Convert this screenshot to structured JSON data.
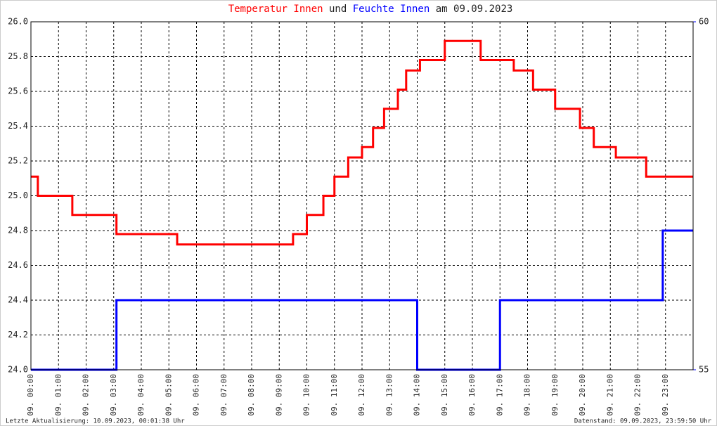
{
  "chart_data": {
    "type": "line",
    "title_connector": "und",
    "title_suffix": "am 09.09.2023",
    "footer_left": "Letzte Aktualisierung: 10.09.2023, 00:01:38 Uhr",
    "footer_right": "Datenstand: 09.09.2023, 23:59:50 Uhr",
    "xlim": [
      0,
      24
    ],
    "xticks": [
      {
        "value": 0,
        "label": "09. 00:00"
      },
      {
        "value": 1,
        "label": "09. 01:00"
      },
      {
        "value": 2,
        "label": "09. 02:00"
      },
      {
        "value": 3,
        "label": "09. 03:00"
      },
      {
        "value": 4,
        "label": "09. 04:00"
      },
      {
        "value": 5,
        "label": "09. 05:00"
      },
      {
        "value": 6,
        "label": "09. 06:00"
      },
      {
        "value": 7,
        "label": "09. 07:00"
      },
      {
        "value": 8,
        "label": "09. 08:00"
      },
      {
        "value": 9,
        "label": "09. 09:00"
      },
      {
        "value": 10,
        "label": "09. 10:00"
      },
      {
        "value": 11,
        "label": "09. 11:00"
      },
      {
        "value": 12,
        "label": "09. 12:00"
      },
      {
        "value": 13,
        "label": "09. 13:00"
      },
      {
        "value": 14,
        "label": "09. 14:00"
      },
      {
        "value": 15,
        "label": "09. 15:00"
      },
      {
        "value": 16,
        "label": "09. 16:00"
      },
      {
        "value": 17,
        "label": "09. 17:00"
      },
      {
        "value": 18,
        "label": "09. 18:00"
      },
      {
        "value": 19,
        "label": "09. 19:00"
      },
      {
        "value": 20,
        "label": "09. 20:00"
      },
      {
        "value": 21,
        "label": "09. 21:00"
      },
      {
        "value": 22,
        "label": "09. 22:00"
      },
      {
        "value": 23,
        "label": "09. 23:00"
      }
    ],
    "ylim": [
      24,
      26
    ],
    "yticks": [
      {
        "value": 24,
        "label": "24.0"
      },
      24.2,
      24.4,
      24.6,
      24.8,
      {
        "value": 25,
        "label": "25.0"
      },
      25.2,
      25.4,
      25.6,
      25.8,
      {
        "value": 26,
        "label": "26.0"
      }
    ],
    "y2lim": [
      55,
      60
    ],
    "y2ticks": [
      55,
      60
    ],
    "grid": true,
    "series": [
      {
        "name": "Temperatur Innen",
        "color": "#ff0000",
        "x": [
          0,
          0.25,
          0.25,
          1.5,
          1.5,
          3.1,
          3.1,
          5.3,
          5.3,
          9.5,
          9.5,
          10.0,
          10.0,
          10.6,
          10.6,
          11.0,
          11.0,
          11.5,
          11.5,
          12.0,
          12.0,
          12.4,
          12.4,
          12.8,
          12.8,
          13.3,
          13.3,
          13.6,
          13.6,
          14.1,
          14.1,
          15.0,
          15.0,
          16.3,
          16.3,
          17.5,
          17.5,
          18.2,
          18.2,
          19.0,
          19.0,
          19.9,
          19.9,
          20.4,
          20.4,
          21.2,
          21.2,
          22.3,
          22.3,
          24
        ],
        "values": [
          25.11,
          25.11,
          25.0,
          25.0,
          24.89,
          24.89,
          24.78,
          24.78,
          24.72,
          24.72,
          24.78,
          24.78,
          24.89,
          24.89,
          25.0,
          25.0,
          25.11,
          25.11,
          25.22,
          25.22,
          25.28,
          25.28,
          25.39,
          25.39,
          25.5,
          25.5,
          25.61,
          25.61,
          25.72,
          25.72,
          25.78,
          25.78,
          25.89,
          25.89,
          25.78,
          25.78,
          25.72,
          25.72,
          25.61,
          25.61,
          25.5,
          25.5,
          25.39,
          25.39,
          25.28,
          25.28,
          25.22,
          25.22,
          25.11,
          25.11
        ]
      },
      {
        "name": "Feuchte Innen",
        "color": "#0000ff",
        "axis": "y2",
        "x": [
          0,
          3.1,
          3.1,
          14.0,
          14.0,
          17.0,
          17.0,
          22.9,
          22.9,
          24
        ],
        "values": [
          55,
          55,
          56,
          56,
          55,
          55,
          56,
          56,
          57,
          57
        ]
      }
    ]
  }
}
